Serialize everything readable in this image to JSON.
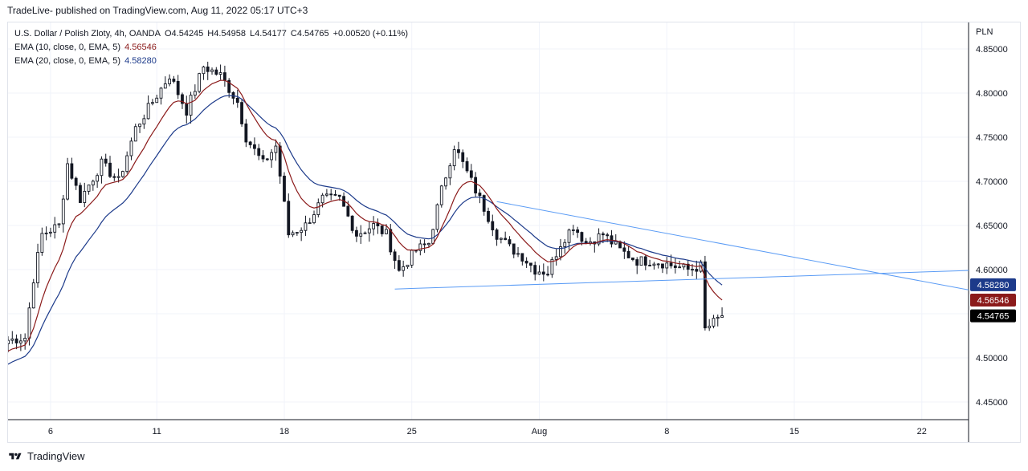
{
  "publish_line": "TradeLive- published on TradingView.com, Aug 11, 2022 05:17 UTC+3",
  "legend": {
    "symbol": "U.S. Dollar / Polish Zloty, 4h, OANDA",
    "o_label": "O",
    "o_value": "4.54245",
    "h_label": "H",
    "h_value": "4.54958",
    "l_label": "L",
    "l_value": "4.54177",
    "c_label": "C",
    "c_value": "4.54765",
    "change": "+0.00520 (+0.11%)",
    "ema10_label": "EMA (10, close, 0, EMA, 5)",
    "ema10_value": "4.56546",
    "ema20_label": "EMA (20, close, 0, EMA, 5)",
    "ema20_value": "4.58280"
  },
  "unit_label": "PLN",
  "footer_brand": "TradingView",
  "colors": {
    "candle": "#131722",
    "ema10": "#8b1a1a",
    "ema20": "#1c3a8a",
    "trendline": "#5b9cf5",
    "tag_ema20": "#1c3a8a",
    "tag_ema10": "#8b1a1a",
    "tag_last": "#000000"
  },
  "chart_data": {
    "type": "candlestick",
    "title": "U.S. Dollar / Polish Zloty, 4h, OANDA",
    "ylim": [
      4.43,
      4.88
    ],
    "y_ticks": [
      4.45,
      4.5,
      4.55,
      4.6,
      4.65,
      4.7,
      4.75,
      4.8,
      4.85
    ],
    "y_tick_labels": [
      "4.45000",
      "4.50000",
      "4.55000",
      "4.60000",
      "4.65000",
      "4.70000",
      "4.75000",
      "4.80000",
      "4.85000"
    ],
    "x_tick_labels": [
      "6",
      "11",
      "18",
      "25",
      "Aug",
      "8",
      "15",
      "22"
    ],
    "x_tick_bar_index": [
      10,
      35,
      65,
      95,
      125,
      155,
      185,
      215
    ],
    "xlim_bars": [
      0,
      226
    ],
    "price_tags": [
      {
        "label": "EMA 20",
        "value": 4.5828,
        "text": "4.58280"
      },
      {
        "label": "EMA 10",
        "value": 4.56546,
        "text": "4.56546"
      },
      {
        "label": "Last",
        "value": 4.54765,
        "text": "4.54765"
      }
    ],
    "trendlines": [
      {
        "name": "upper",
        "from": [
          115,
          4.677
        ],
        "to": [
          226,
          4.577
        ]
      },
      {
        "name": "lower",
        "from": [
          91,
          4.578
        ],
        "to": [
          226,
          4.599
        ]
      }
    ],
    "anchors": [
      [
        0,
        4.52
      ],
      [
        4,
        4.523
      ],
      [
        6,
        4.59
      ],
      [
        8,
        4.64
      ],
      [
        12,
        4.65
      ],
      [
        14,
        4.72
      ],
      [
        17,
        4.68
      ],
      [
        22,
        4.72
      ],
      [
        26,
        4.7
      ],
      [
        30,
        4.76
      ],
      [
        34,
        4.79
      ],
      [
        38,
        4.82
      ],
      [
        42,
        4.78
      ],
      [
        46,
        4.83
      ],
      [
        50,
        4.82
      ],
      [
        54,
        4.79
      ],
      [
        56,
        4.75
      ],
      [
        60,
        4.72
      ],
      [
        63,
        4.74
      ],
      [
        66,
        4.64
      ],
      [
        70,
        4.65
      ],
      [
        74,
        4.68
      ],
      [
        78,
        4.68
      ],
      [
        82,
        4.64
      ],
      [
        86,
        4.65
      ],
      [
        89,
        4.64
      ],
      [
        92,
        4.598
      ],
      [
        96,
        4.622
      ],
      [
        99,
        4.63
      ],
      [
        102,
        4.69
      ],
      [
        105,
        4.74
      ],
      [
        108,
        4.71
      ],
      [
        112,
        4.67
      ],
      [
        115,
        4.64
      ],
      [
        118,
        4.625
      ],
      [
        121,
        4.615
      ],
      [
        124,
        4.6
      ],
      [
        127,
        4.597
      ],
      [
        130,
        4.63
      ],
      [
        133,
        4.65
      ],
      [
        136,
        4.63
      ],
      [
        140,
        4.64
      ],
      [
        144,
        4.622
      ],
      [
        148,
        4.61
      ],
      [
        152,
        4.61
      ],
      [
        156,
        4.605
      ],
      [
        160,
        4.6
      ],
      [
        163,
        4.604
      ],
      [
        164,
        4.532
      ],
      [
        166,
        4.54
      ],
      [
        168,
        4.5477
      ]
    ]
  }
}
